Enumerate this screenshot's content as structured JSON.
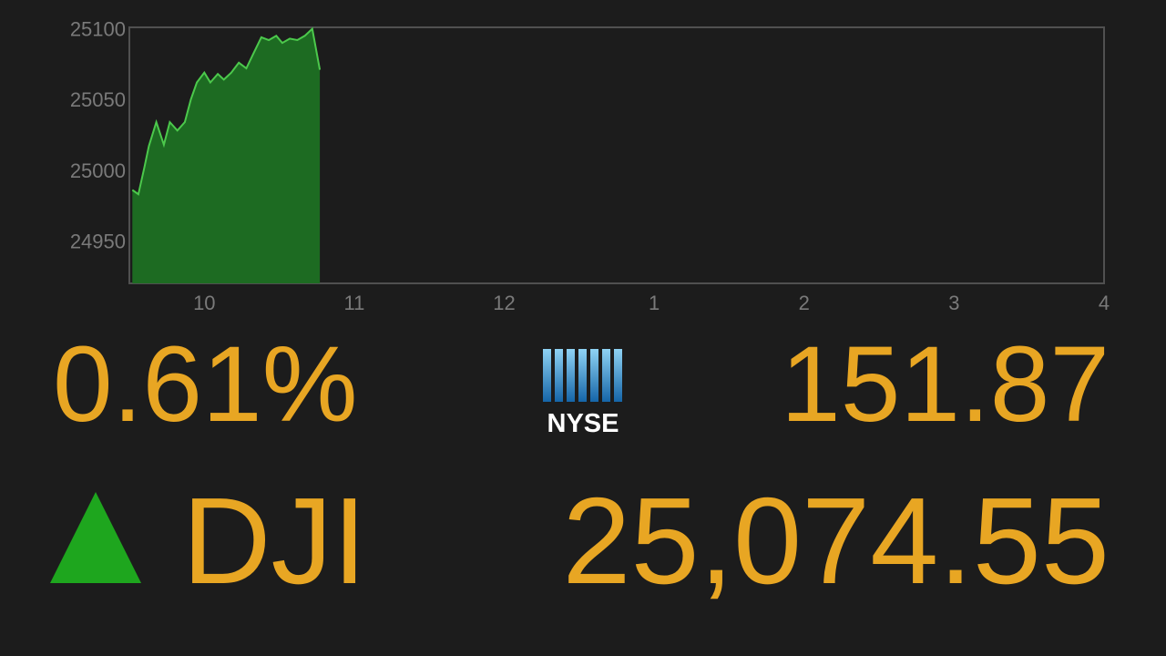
{
  "chart_data": {
    "type": "area",
    "x": [
      9.52,
      9.56,
      9.6,
      9.63,
      9.68,
      9.73,
      9.77,
      9.82,
      9.87,
      9.91,
      9.95,
      10.0,
      10.04,
      10.09,
      10.13,
      10.18,
      10.23,
      10.28,
      10.33,
      10.38,
      10.43,
      10.48,
      10.52,
      10.57,
      10.62,
      10.67,
      10.72,
      10.77
    ],
    "series": [
      {
        "color": "#4cc94c",
        "fill": "#1d6b22",
        "values": [
          24986,
          24983,
          25002,
          25017,
          25034,
          25018,
          25034,
          25028,
          25034,
          25050,
          25062,
          25069,
          25062,
          25068,
          25064,
          25069,
          25076,
          25072,
          25083,
          25094,
          25092,
          25095,
          25090,
          25093,
          25092,
          25095,
          25100,
          25071
        ]
      }
    ],
    "xlim": [
      9.5,
      16
    ],
    "xticks": [
      10,
      11,
      12,
      {
        "value": 13,
        "label": "1"
      },
      {
        "value": 14,
        "label": "2"
      },
      {
        "value": 15,
        "label": "3"
      },
      {
        "value": 16,
        "label": "4"
      }
    ],
    "ylim": [
      24920,
      25101
    ],
    "yticks": [
      24950,
      25000,
      25050,
      25100
    ]
  },
  "ticker": {
    "change_percent": "0.61%",
    "exchange": "NYSE",
    "change": "151.87",
    "symbol": "DJI",
    "price": "25,074.55"
  }
}
